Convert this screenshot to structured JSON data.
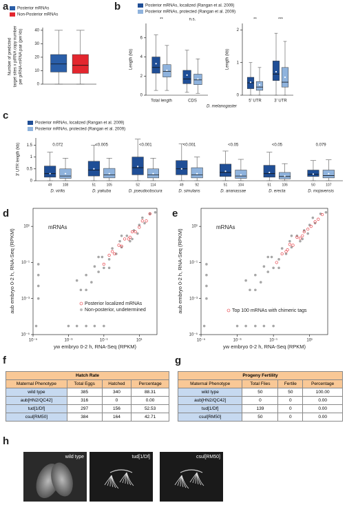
{
  "chart_data": [
    {
      "type": "box",
      "panel": "a",
      "ylabel": [
        "Number of predicted",
        "target sites x piRNA copy number",
        "per piRNA-mRNA pair (per kb)"
      ],
      "ylim": [
        0,
        42
      ],
      "yticks": [
        0,
        10,
        20,
        30,
        40
      ],
      "series": [
        {
          "name": "Posterior mRNAs",
          "color": "#2a5ea8",
          "boxes": [
            {
              "whislo": 0,
              "q1": 9,
              "med": 15,
              "q3": 22,
              "whishi": 40
            }
          ]
        },
        {
          "name": "Non-Posterior mRNAs",
          "color": "#e3262e",
          "boxes": [
            {
              "whislo": 0,
              "q1": 8,
              "med": 14,
              "q3": 22,
              "whishi": 40
            }
          ]
        }
      ]
    },
    {
      "type": "box",
      "panel": "b",
      "ylabel": "Length (kb)",
      "categories": [
        "Total length",
        "CDS"
      ],
      "annotations": [
        "**",
        "n.s."
      ],
      "ylim": [
        0,
        7.5
      ],
      "yticks": [
        0,
        2,
        4,
        6
      ],
      "series": [
        {
          "name": "Posterior mRNAs, localized (Rangan et al. 2009)",
          "color": "#1f4e96",
          "boxes": [
            {
              "whislo": 0.5,
              "q1": 2.3,
              "med": 2.9,
              "q3": 4,
              "whishi": 6.3,
              "mean": 3.3
            },
            {
              "whislo": 0.3,
              "q1": 1.2,
              "med": 1.7,
              "q3": 2.6,
              "whishi": 4.7,
              "mean": 2.1
            }
          ]
        },
        {
          "name": "Posterior mRNAs, protected (Rangan et al. 2009)",
          "color": "#8fb3dd",
          "boxes": [
            {
              "whislo": 0.5,
              "q1": 1.9,
              "med": 2.5,
              "q3": 3.2,
              "whishi": 5.2,
              "mean": 2.6
            },
            {
              "whislo": 0.2,
              "q1": 1.1,
              "med": 1.6,
              "q3": 2.2,
              "whishi": 3.8,
              "mean": 1.7
            }
          ]
        }
      ]
    },
    {
      "type": "box",
      "ylabel": "Length (kb)",
      "xlabel": "D. melanogaster",
      "categories": [
        "5' UTR",
        "3' UTR"
      ],
      "annotations": [
        "**",
        "***"
      ],
      "ylim": [
        0,
        2.2
      ],
      "yticks": [
        0,
        1,
        2
      ],
      "series": [
        {
          "color": "#1f4e96",
          "boxes": [
            {
              "whislo": 0,
              "q1": 0.2,
              "med": 0.38,
              "q3": 0.55,
              "whishi": 1.0,
              "mean": 0.4
            },
            {
              "whislo": 0,
              "q1": 0.45,
              "med": 0.65,
              "q3": 1.05,
              "whishi": 1.9,
              "mean": 0.72
            }
          ]
        },
        {
          "color": "#8fb3dd",
          "boxes": [
            {
              "whislo": 0,
              "q1": 0.15,
              "med": 0.25,
              "q3": 0.42,
              "whishi": 0.85,
              "mean": 0.32
            },
            {
              "whislo": 0,
              "q1": 0.25,
              "med": 0.4,
              "q3": 0.85,
              "whishi": 1.65,
              "mean": 0.55
            }
          ]
        }
      ]
    },
    {
      "type": "box",
      "panel": "c",
      "ylabel": "3' UTR length (kb)",
      "categories": [
        "D. virilis",
        "D. yakuba",
        "D. pseudoobscura",
        "D. simulans",
        "D. ananassae",
        "D. erecta",
        "D. mojavensis"
      ],
      "annotations": [
        "0.072",
        "<0.005",
        "<0.001",
        "<0.001",
        "<0.05",
        "<0.05",
        "0.079"
      ],
      "ylim": [
        0,
        1.8
      ],
      "yticks": [
        0,
        0.5,
        1,
        1.5
      ],
      "series": [
        {
          "name": "Posterior mRNAs, localized (Rangan et al. 2009)",
          "color": "#1f4e96",
          "n": [
            49,
            51,
            52,
            49,
            51,
            51,
            50
          ],
          "boxes": [
            {
              "whislo": 0,
              "q1": 0.15,
              "med": 0.3,
              "q3": 0.62,
              "whishi": 1.2,
              "mean": 0.3
            },
            {
              "whislo": 0,
              "q1": 0.2,
              "med": 0.45,
              "q3": 0.82,
              "whishi": 1.5,
              "mean": 0.5
            },
            {
              "whislo": 0,
              "q1": 0.25,
              "med": 0.55,
              "q3": 1.0,
              "whishi": 1.75,
              "mean": 0.6
            },
            {
              "whislo": 0,
              "q1": 0.25,
              "med": 0.5,
              "q3": 0.85,
              "whishi": 1.55,
              "mean": 0.5
            },
            {
              "whislo": 0,
              "q1": 0.18,
              "med": 0.35,
              "q3": 0.7,
              "whishi": 1.25,
              "mean": 0.4
            },
            {
              "whislo": 0,
              "q1": 0.15,
              "med": 0.3,
              "q3": 0.65,
              "whishi": 1.2,
              "mean": 0.35
            },
            {
              "whislo": 0,
              "q1": 0.18,
              "med": 0.28,
              "q3": 0.45,
              "whishi": 0.85,
              "mean": 0.28
            }
          ]
        },
        {
          "name": "Posterior mRNAs, protected (Rangan et al. 2009)",
          "color": "#8fb3dd",
          "n": [
            108,
            105,
            114,
            92,
            104,
            106,
            107
          ],
          "boxes": [
            {
              "whislo": 0,
              "q1": 0.1,
              "med": 0.2,
              "q3": 0.5,
              "whishi": 0.95,
              "mean": 0.3
            },
            {
              "whislo": 0,
              "q1": 0.12,
              "med": 0.25,
              "q3": 0.52,
              "whishi": 0.95,
              "mean": 0.3
            },
            {
              "whislo": 0,
              "q1": 0.12,
              "med": 0.25,
              "q3": 0.5,
              "whishi": 0.95,
              "mean": 0.3
            },
            {
              "whislo": 0,
              "q1": 0.12,
              "med": 0.25,
              "q3": 0.55,
              "whishi": 1.0,
              "mean": 0.3
            },
            {
              "whislo": 0,
              "q1": 0.1,
              "med": 0.2,
              "q3": 0.45,
              "whishi": 0.9,
              "mean": 0.25
            },
            {
              "whislo": 0,
              "q1": 0.08,
              "med": 0.18,
              "q3": 0.35,
              "whishi": 0.72,
              "mean": 0.2
            },
            {
              "whislo": 0,
              "q1": 0.12,
              "med": 0.22,
              "q3": 0.45,
              "whishi": 0.88,
              "mean": 0.3
            }
          ]
        }
      ]
    },
    {
      "type": "scatter",
      "panel": "d",
      "annotation": "mRNAs",
      "log": true,
      "xlabel": "yw embryo 0-2 h, RNA-Seq (RPKM)",
      "ylabel": "aub embryo 0-2 h, RNA-Seq (RPKM)",
      "xlim": [
        1e-05,
        100
      ],
      "ylim": [
        1e-05,
        100
      ],
      "xticks": [
        {
          "value": 1e-05,
          "label": "10⁻⁵"
        },
        {
          "value": 0.001,
          "label": "10⁻³"
        },
        {
          "value": 0.1,
          "label": "10⁻¹"
        },
        {
          "value": 10,
          "label": "10¹"
        }
      ],
      "yticks": [
        {
          "value": 1e-05,
          "label": "10⁻⁵"
        },
        {
          "value": 0.001,
          "label": "10⁻³"
        },
        {
          "value": 0.1,
          "label": "10⁻¹"
        },
        {
          "value": 10,
          "label": "10¹"
        }
      ],
      "series": [
        {
          "name": "Posterior localized mRNAs",
          "color": "#e3262e",
          "x": [
            0.1,
            0.2,
            0.4,
            0.7,
            1,
            1.5,
            2.5,
            4,
            6,
            10,
            15,
            25,
            40,
            0.3,
            3
          ],
          "values": [
            0.08,
            0.25,
            0.3,
            0.9,
            0.8,
            2,
            2,
            5,
            5,
            9,
            20,
            20,
            50,
            0.4,
            2.5
          ]
        },
        {
          "name": "Non-posterior, undetermined",
          "color": "#000000",
          "x": [
            0.003,
            0.005,
            0.01,
            0.02,
            0.03,
            0.05,
            0.08,
            0.1,
            0.2,
            0.3,
            0.5,
            0.8,
            1,
            2,
            3,
            5,
            8,
            10,
            20,
            40,
            80,
            0.01,
            0.05,
            0.2,
            1,
            4,
            15,
            2e-05,
            2e-05,
            2e-05,
            2e-05,
            0.001,
            0.003,
            0.01,
            0.03,
            0.1,
            1.5e-05
          ],
          "values": [
            0.01,
            0.003,
            0.02,
            0.008,
            0.06,
            0.03,
            0.2,
            0.05,
            0.15,
            0.6,
            0.3,
            1.5,
            0.7,
            3,
            1.5,
            6,
            4,
            12,
            15,
            50,
            60,
            0.003,
            0.2,
            0.05,
            3,
            2,
            30,
            0.001,
            0.005,
            0.02,
            0.08,
            3e-05,
            3e-05,
            3e-05,
            3e-05,
            3e-05,
            3e-05
          ]
        }
      ]
    },
    {
      "type": "scatter",
      "panel": "e",
      "annotation": "mRNAs",
      "log": true,
      "xlabel": "yw embryo 0-2 h, RNA-Seq (RPKM)",
      "ylabel": "aub embryo 0-2 h, RNA-Seq (RPKM)",
      "xlim": [
        1e-05,
        100
      ],
      "ylim": [
        1e-05,
        100
      ],
      "xticks": [
        {
          "value": 1e-05,
          "label": "10⁻⁵"
        },
        {
          "value": 0.001,
          "label": "10⁻³"
        },
        {
          "value": 0.1,
          "label": "10⁻¹"
        },
        {
          "value": 10,
          "label": "10¹"
        }
      ],
      "yticks": [
        {
          "value": 1e-05,
          "label": "10⁻⁵"
        },
        {
          "value": 0.001,
          "label": "10⁻³"
        },
        {
          "value": 0.1,
          "label": "10⁻¹"
        },
        {
          "value": 10,
          "label": "10¹"
        }
      ],
      "series": [
        {
          "name": "Top 100 mRNAs with chimeric tags",
          "color": "#e3262e",
          "x": [
            0.15,
            0.3,
            0.5,
            0.8,
            1.2,
            2,
            3,
            5,
            8,
            12,
            20,
            30,
            50,
            0.6,
            4
          ],
          "values": [
            0.1,
            0.3,
            0.4,
            1,
            0.9,
            2.5,
            2.2,
            5,
            7,
            10,
            18,
            25,
            45,
            0.5,
            3
          ]
        },
        {
          "color": "#000000",
          "x": [
            0.003,
            0.005,
            0.01,
            0.02,
            0.03,
            0.05,
            0.08,
            0.1,
            0.2,
            0.3,
            0.5,
            0.8,
            1,
            2,
            3,
            5,
            8,
            10,
            20,
            40,
            80,
            0.01,
            0.05,
            0.2,
            1,
            4,
            15,
            2e-05,
            2e-05,
            2e-05,
            2e-05,
            0.001,
            0.003,
            0.01,
            0.03,
            0.1,
            1.5e-05
          ],
          "values": [
            0.01,
            0.003,
            0.02,
            0.008,
            0.06,
            0.03,
            0.2,
            0.05,
            0.15,
            0.6,
            0.3,
            1.5,
            0.7,
            3,
            1.5,
            6,
            4,
            12,
            15,
            50,
            60,
            0.003,
            0.2,
            0.05,
            3,
            2,
            30,
            0.001,
            0.005,
            0.02,
            0.08,
            3e-05,
            3e-05,
            3e-05,
            3e-05,
            3e-05,
            3e-05
          ]
        }
      ]
    }
  ],
  "tables": [
    {
      "panel": "f",
      "title": "Hatch Rate",
      "columns": [
        "Maternal Phenotype",
        "Total Eggs",
        "Hatched",
        "Percentage"
      ],
      "rows": [
        [
          "wild type",
          "385",
          "340",
          "88.31"
        ],
        [
          "aub[HN2/QC42]",
          "316",
          "0",
          "0.00"
        ],
        [
          "tud[1/Df]",
          "297",
          "156",
          "52.53"
        ],
        [
          "csul[RM50]",
          "384",
          "164",
          "42.71"
        ]
      ]
    },
    {
      "panel": "g",
      "title": "Progeny Fertility",
      "columns": [
        "Maternal Phenotype",
        "Total Flies",
        "Fertile",
        "Percentage"
      ],
      "rows": [
        [
          "wild type",
          "50",
          "50",
          "100.00"
        ],
        [
          "aub[HN2/QC42]",
          "0",
          "0",
          "0.00"
        ],
        [
          "tud[1/Df]",
          "139",
          "0",
          "0.00"
        ],
        [
          "csul[RM50]",
          "50",
          "0",
          "0.00"
        ]
      ]
    }
  ],
  "images": {
    "panel": "h",
    "labels": [
      "wild type",
      "tud[1/Df]",
      "csul[RM50]"
    ]
  }
}
